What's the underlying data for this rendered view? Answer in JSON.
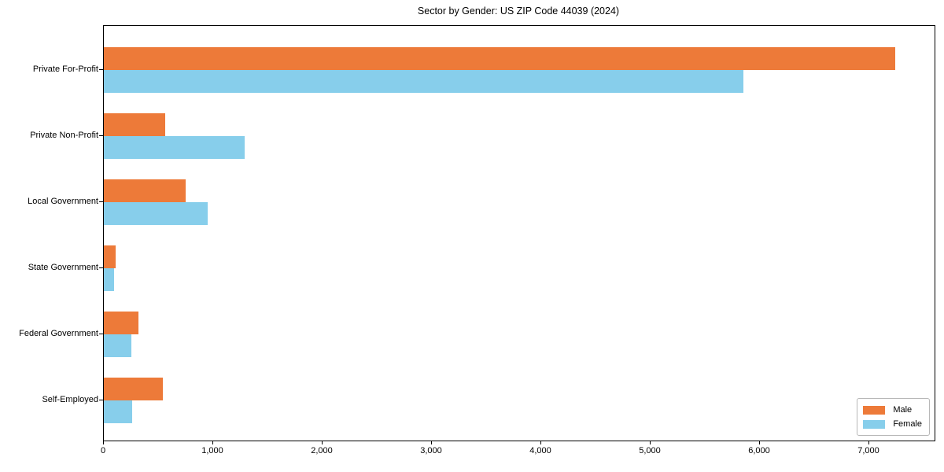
{
  "title": "Sector by Gender: US ZIP Code 44039 (2024)",
  "colors": {
    "male": "#ed7a39",
    "female": "#87ceeb",
    "axis": "#000000",
    "background": "#ffffff",
    "legend_border": "#b7b7b7"
  },
  "chart_data": {
    "type": "bar",
    "orientation": "horizontal",
    "title": "Sector by Gender: US ZIP Code 44039 (2024)",
    "xlabel": "",
    "ylabel": "",
    "grid": false,
    "categories": [
      "Private For-Profit",
      "Private Non-Profit",
      "Local Government",
      "State Government",
      "Federal Government",
      "Self-Employed"
    ],
    "series": [
      {
        "name": "Male",
        "color": "#ed7a39",
        "values": [
          7240,
          560,
          750,
          105,
          320,
          540
        ]
      },
      {
        "name": "Female",
        "color": "#87ceeb",
        "values": [
          5850,
          1285,
          950,
          95,
          250,
          260
        ]
      }
    ],
    "xlim": [
      0,
      7600
    ],
    "xticks": [
      0,
      1000,
      2000,
      3000,
      4000,
      5000,
      6000,
      7000
    ],
    "xtick_labels": [
      "0",
      "1,000",
      "2,000",
      "3,000",
      "4,000",
      "5,000",
      "6,000",
      "7,000"
    ],
    "legend": {
      "position": "lower right",
      "entries": [
        "Male",
        "Female"
      ]
    }
  }
}
